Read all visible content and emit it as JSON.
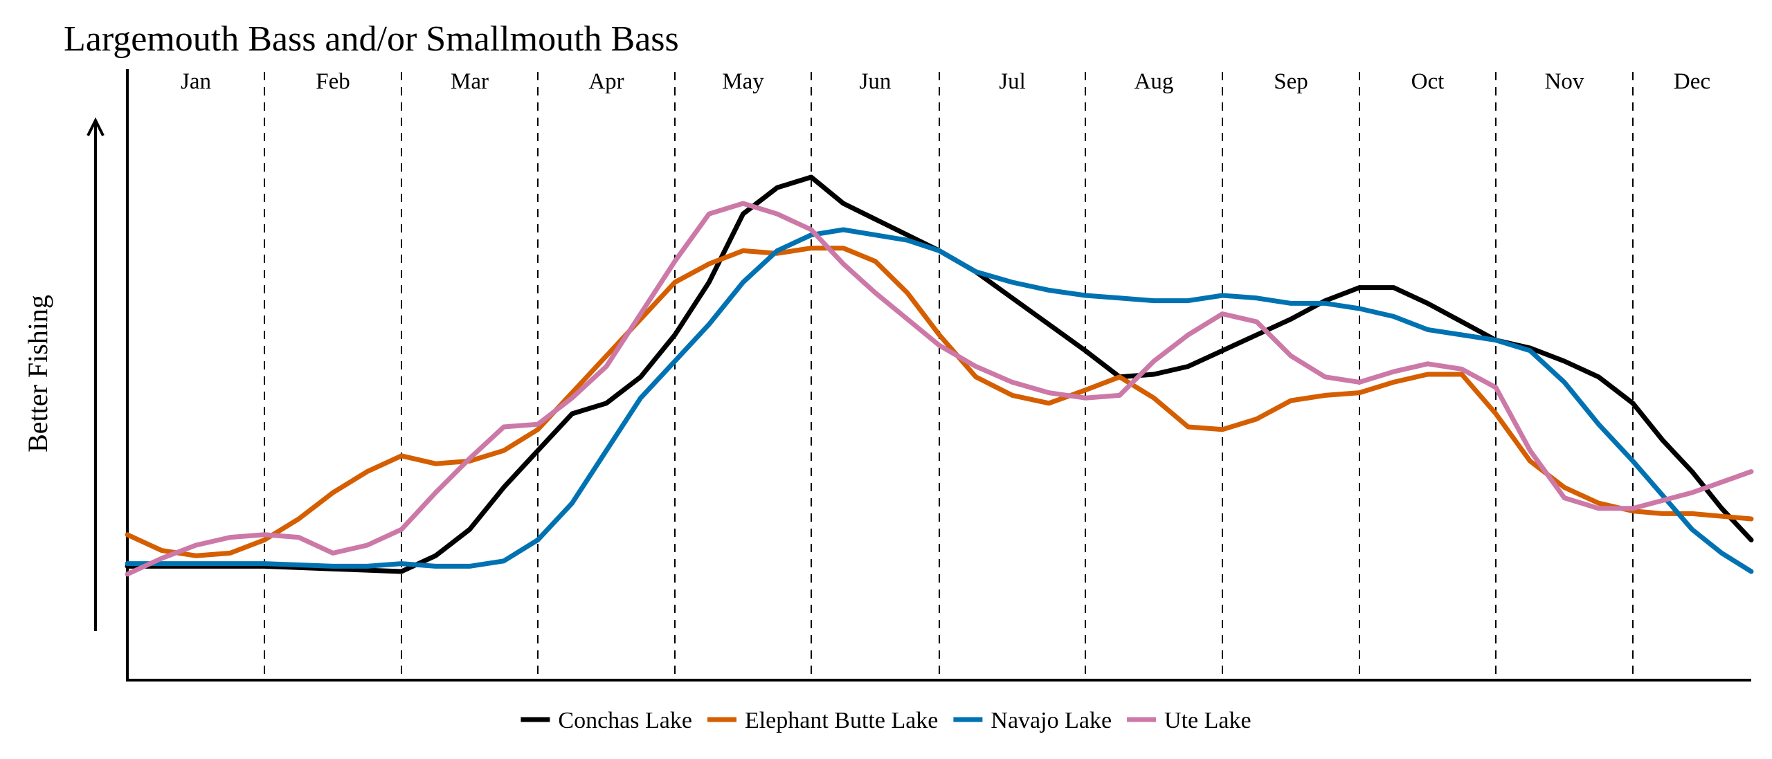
{
  "chart_data": {
    "type": "line",
    "title": "Largemouth Bass and/or Smallmouth Bass",
    "ylabel": "Better Fishing",
    "xlabel": "",
    "months": [
      "Jan",
      "Feb",
      "Mar",
      "Apr",
      "May",
      "Jun",
      "Jul",
      "Aug",
      "Sep",
      "Oct",
      "Nov",
      "Dec"
    ],
    "x_range": [
      0,
      12
    ],
    "ylim": [
      0,
      100
    ],
    "legend_position": "bottom",
    "grid": "dashed month dividers",
    "series": [
      {
        "name": "Conchas Lake",
        "color": "#000000",
        "x": [
          0,
          0.5,
          1,
          1.5,
          2,
          2.25,
          2.5,
          2.75,
          3,
          3.25,
          3.5,
          3.75,
          4,
          4.25,
          4.5,
          4.75,
          5,
          5.25,
          5.5,
          5.75,
          6,
          6.25,
          6.5,
          6.75,
          7,
          7.25,
          7.5,
          7.75,
          8,
          8.25,
          8.5,
          8.75,
          9,
          9.25,
          9.5,
          9.75,
          10,
          10.25,
          10.5,
          10.75,
          11,
          11.25,
          11.5,
          11.75,
          12
        ],
        "values": [
          16,
          16,
          16,
          15.5,
          15,
          18,
          23,
          31,
          38,
          45,
          47,
          52,
          60,
          70,
          83,
          88,
          90,
          85,
          82,
          79,
          76,
          72,
          67,
          62,
          57,
          52,
          52.5,
          54,
          57,
          60,
          63,
          66.5,
          69,
          69,
          66,
          62.5,
          59,
          57.5,
          55,
          52,
          47,
          40,
          34,
          27,
          21
        ]
      },
      {
        "name": "Elephant Butte Lake",
        "color": "#D55E00",
        "x": [
          0,
          0.25,
          0.5,
          0.75,
          1,
          1.25,
          1.5,
          1.75,
          2,
          2.25,
          2.5,
          2.75,
          3,
          3.25,
          3.5,
          3.75,
          4,
          4.25,
          4.5,
          4.75,
          5,
          5.25,
          5.5,
          5.75,
          6,
          6.25,
          6.5,
          6.75,
          7,
          7.25,
          7.5,
          7.75,
          8,
          8.25,
          8.5,
          8.75,
          9,
          9.25,
          9.5,
          9.75,
          10,
          10.25,
          10.5,
          10.75,
          11,
          11.25,
          11.5,
          11.75,
          12
        ],
        "values": [
          22,
          19,
          18,
          18.5,
          21,
          25,
          30,
          34,
          37,
          35.5,
          36,
          38,
          42,
          49,
          56,
          63,
          70,
          73.5,
          76,
          75.5,
          76.5,
          76.5,
          74,
          68,
          60,
          52,
          48.5,
          47,
          49.5,
          52,
          48,
          42.5,
          42,
          44,
          47.5,
          48.5,
          49,
          51,
          52.5,
          52.5,
          45,
          36,
          31,
          28,
          26.5,
          26,
          26,
          25.5,
          25
        ]
      },
      {
        "name": "Navajo Lake",
        "color": "#0072B2",
        "x": [
          0,
          0.5,
          1,
          1.5,
          1.75,
          2,
          2.25,
          2.5,
          2.75,
          3,
          3.25,
          3.5,
          3.75,
          4,
          4.25,
          4.5,
          4.75,
          5,
          5.25,
          5.5,
          5.75,
          6,
          6.25,
          6.5,
          6.75,
          7,
          7.25,
          7.5,
          7.75,
          8,
          8.25,
          8.5,
          8.75,
          9,
          9.25,
          9.5,
          9.75,
          10,
          10.25,
          10.5,
          10.75,
          11,
          11.25,
          11.5,
          11.75,
          12
        ],
        "values": [
          16.5,
          16.5,
          16.5,
          16,
          16,
          16.5,
          16,
          16,
          17,
          21,
          28,
          38,
          48,
          55,
          62,
          70,
          76,
          79,
          80,
          79,
          78,
          76,
          72,
          70,
          68.5,
          67.5,
          67,
          66.5,
          66.5,
          67.5,
          67,
          66,
          66,
          65,
          63.5,
          61,
          60,
          59,
          57,
          51,
          43,
          36,
          29.5,
          23,
          18.5,
          15
        ]
      },
      {
        "name": "Ute Lake",
        "color": "#CC79A7",
        "x": [
          0,
          0.25,
          0.5,
          0.75,
          1,
          1.25,
          1.5,
          1.75,
          2,
          2.25,
          2.5,
          2.75,
          3,
          3.25,
          3.5,
          3.75,
          4,
          4.25,
          4.5,
          4.75,
          5,
          5.25,
          5.5,
          5.75,
          6,
          6.25,
          6.5,
          6.75,
          7,
          7.25,
          7.5,
          7.75,
          8,
          8.25,
          8.5,
          8.75,
          9,
          9.25,
          9.5,
          9.75,
          10,
          10.25,
          10.5,
          10.75,
          11,
          11.25,
          11.5,
          11.75,
          12
        ],
        "values": [
          14.5,
          17.5,
          20,
          21.5,
          22,
          21.5,
          18.5,
          20,
          23,
          30,
          36.5,
          42.5,
          43,
          48,
          54,
          64,
          74,
          83,
          85,
          83,
          80,
          73.5,
          68,
          63,
          58,
          54,
          51,
          49,
          48,
          48.5,
          55,
          60,
          64,
          62.5,
          56,
          52,
          51,
          53,
          54.5,
          53.5,
          50,
          38,
          29,
          27,
          27,
          28.5,
          30,
          32,
          34
        ]
      }
    ]
  }
}
